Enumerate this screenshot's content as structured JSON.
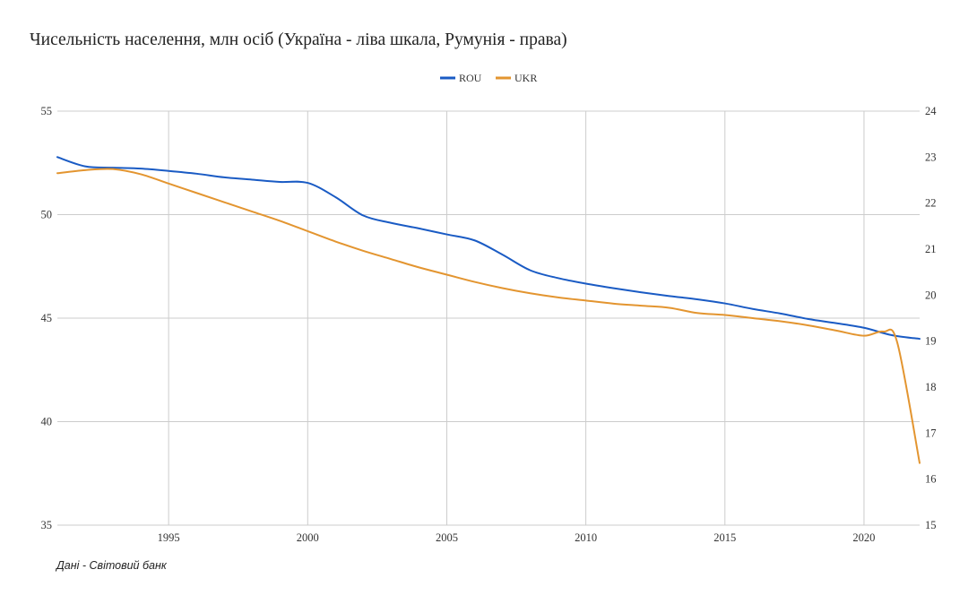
{
  "title": "Чисельність населення, млн осіб (Україна - ліва шкала, Румунія - права)",
  "source": "Дані - Світовий банк",
  "colors": {
    "ROU": "#1a5bc4",
    "UKR": "#e39530",
    "grid": "#cccccc",
    "text": "#333333"
  },
  "chart_data": {
    "type": "line",
    "title": "Чисельність населення, млн осіб (Україна - ліва шкала, Румунія - права)",
    "legend_position": "top",
    "grid": true,
    "x_ticks": [
      1995,
      2000,
      2005,
      2010,
      2015,
      2020
    ],
    "xlim": [
      1991,
      2022
    ],
    "y_left": {
      "ylim": [
        35,
        55
      ],
      "ticks": [
        35,
        40,
        45,
        50,
        55
      ]
    },
    "y_right": {
      "ylim": [
        15,
        24
      ],
      "ticks": [
        15,
        16,
        17,
        18,
        19,
        20,
        21,
        22,
        23,
        24
      ]
    },
    "series": [
      {
        "name": "ROU",
        "axis": "right",
        "x": [
          1991,
          1992,
          1993,
          1994,
          1995,
          1996,
          1997,
          1998,
          1999,
          2000,
          2001,
          2002,
          2003,
          2004,
          2005,
          2006,
          2007,
          2008,
          2009,
          2010,
          2011,
          2012,
          2013,
          2014,
          2015,
          2016,
          2017,
          2018,
          2019,
          2020,
          2021,
          2022
        ],
        "values": [
          23.0,
          22.8,
          22.77,
          22.75,
          22.7,
          22.64,
          22.56,
          22.51,
          22.46,
          22.44,
          22.13,
          21.73,
          21.57,
          21.45,
          21.32,
          21.19,
          20.88,
          20.54,
          20.37,
          20.25,
          20.15,
          20.06,
          19.98,
          19.91,
          19.82,
          19.7,
          19.6,
          19.48,
          19.39,
          19.29,
          19.13,
          19.05
        ]
      },
      {
        "name": "UKR",
        "axis": "left",
        "x": [
          1991,
          1992,
          1993,
          1994,
          1995,
          1996,
          1997,
          1998,
          1999,
          2000,
          2001,
          2002,
          2003,
          2004,
          2005,
          2006,
          2007,
          2008,
          2009,
          2010,
          2011,
          2012,
          2013,
          2014,
          2015,
          2016,
          2017,
          2018,
          2019,
          2020,
          2020.7,
          2021.2,
          2022
        ],
        "values": [
          52.0,
          52.15,
          52.2,
          51.95,
          51.5,
          51.05,
          50.6,
          50.15,
          49.7,
          49.2,
          48.7,
          48.25,
          47.85,
          47.45,
          47.1,
          46.75,
          46.45,
          46.2,
          46.0,
          45.85,
          45.7,
          45.6,
          45.5,
          45.25,
          45.15,
          45.0,
          44.85,
          44.65,
          44.4,
          44.15,
          44.35,
          43.8,
          38.0
        ]
      }
    ]
  }
}
